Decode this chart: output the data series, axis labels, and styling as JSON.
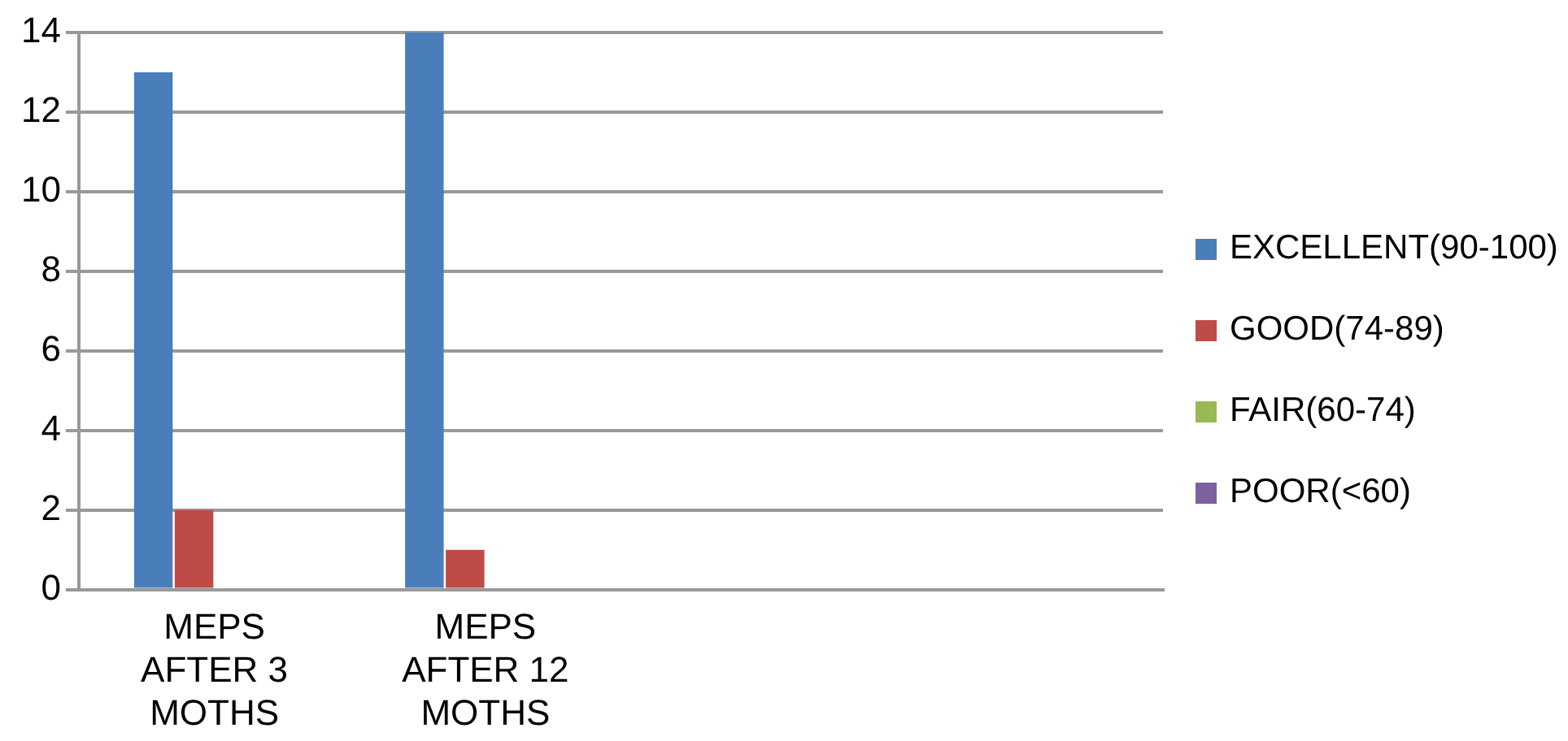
{
  "chart_data": {
    "type": "bar",
    "categories": [
      "MEPS AFTER 3 MOTHS",
      "MEPS AFTER 12 MOTHS",
      null,
      null
    ],
    "series": [
      {
        "name": "EXCELLENT(90-100)",
        "color": "#4a7ebb",
        "values": [
          13,
          14,
          null,
          null
        ]
      },
      {
        "name": "GOOD(74-89)",
        "color": "#be4b48",
        "values": [
          2,
          1,
          null,
          null
        ]
      },
      {
        "name": "FAIR(60-74)",
        "color": "#98b954",
        "values": [
          0,
          0,
          null,
          null
        ]
      },
      {
        "name": "POOR(<60)",
        "color": "#7d60a0",
        "values": [
          0,
          0,
          null,
          null
        ]
      }
    ],
    "ylim": [
      0,
      14
    ],
    "yticks": [
      0,
      2,
      4,
      6,
      8,
      10,
      12,
      14
    ],
    "grid": "y",
    "legend": "right"
  }
}
